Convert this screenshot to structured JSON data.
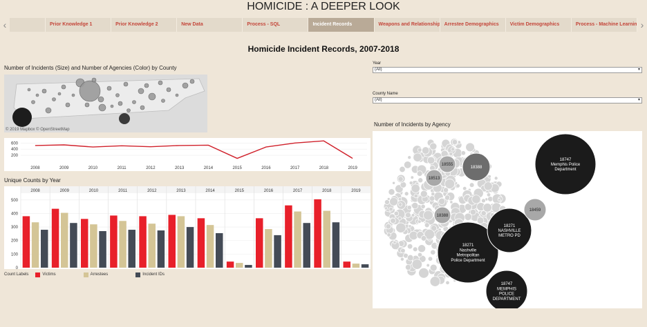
{
  "story": {
    "title": "HOMICIDE : A DEEPER LOOK"
  },
  "tabs": [
    {
      "label": ""
    },
    {
      "label": "Prior Knowledge 1"
    },
    {
      "label": "Prior Knowledge 2"
    },
    {
      "label": "New Data"
    },
    {
      "label": "Process - SQL"
    },
    {
      "label": "Incident Records"
    },
    {
      "label": "Weapons and Relationships"
    },
    {
      "label": "Arrestee Demographics"
    },
    {
      "label": "Victim Demographics"
    },
    {
      "label": "Process - Machine Learning"
    }
  ],
  "active_tab": 5,
  "dashboard": {
    "title": "Homicide Incident Records, 2007-2018"
  },
  "map": {
    "title": "Number of Incidents (Size) and Number of Agencies (Color) by County",
    "attribution": "© 2019 Mapbox © OpenStreetMap"
  },
  "filters": {
    "year_label": "Year",
    "year_value": "(All)",
    "county_label": "County Name",
    "county_value": "(All)"
  },
  "bar_section_title": "Unique Counts by Year",
  "agency_section_title": "Number of Incidents by Agency",
  "legend": {
    "title": "Count Labels",
    "items": [
      {
        "label": "Victims",
        "color": "#e8202a"
      },
      {
        "label": "Arrestees",
        "color": "#d4c596"
      },
      {
        "label": "Incident IDs",
        "color": "#444b56"
      }
    ]
  },
  "chart_data": [
    {
      "type": "line",
      "x": [
        "2008",
        "2009",
        "2010",
        "2011",
        "2012",
        "2013",
        "2014",
        "2015",
        "2016",
        "2017",
        "2018",
        "2019"
      ],
      "series": [
        {
          "values": [
            520,
            540,
            470,
            510,
            480,
            520,
            530,
            100,
            470,
            600,
            670,
            100
          ]
        }
      ],
      "yticks": [
        200,
        400,
        600
      ],
      "ylim": [
        0,
        720
      ],
      "color": "#d0202a"
    },
    {
      "type": "bar",
      "title": "Unique Counts by Year",
      "categories": [
        "2008",
        "2009",
        "2010",
        "2011",
        "2012",
        "2013",
        "2014",
        "2015",
        "2016",
        "2017",
        "2018",
        "2019"
      ],
      "series": [
        {
          "name": "Victims",
          "values": [
            380,
            435,
            360,
            385,
            380,
            390,
            365,
            45,
            365,
            460,
            505,
            45
          ]
        },
        {
          "name": "Arrestees",
          "values": [
            335,
            405,
            320,
            345,
            325,
            380,
            315,
            35,
            285,
            415,
            420,
            30
          ]
        },
        {
          "name": "Incident IDs",
          "values": [
            280,
            330,
            270,
            280,
            275,
            300,
            255,
            20,
            240,
            330,
            335,
            25
          ]
        }
      ],
      "yticks": [
        0,
        100,
        200,
        300,
        400,
        500
      ],
      "ylim": [
        0,
        540
      ]
    },
    {
      "type": "bubble",
      "title": "Number of Incidents by Agency",
      "bubbles": [
        {
          "id": "18747",
          "name": "Memphis Police Department",
          "size": 10,
          "shade": "dark"
        },
        {
          "id": "18271",
          "name": "Nashville Metropolitan Police Department",
          "size": 10,
          "shade": "dark"
        },
        {
          "id": "18271",
          "name": "NASHVILLE METRO PD",
          "size": 8,
          "shade": "dark"
        },
        {
          "id": "18747",
          "name": "MEMPHIS POLICE DEPARTMENT",
          "size": 7,
          "shade": "dark"
        },
        {
          "id": "18388",
          "name": "",
          "size": 4,
          "shade": "mid"
        },
        {
          "id": "18459",
          "name": "",
          "size": 3,
          "shade": "light"
        },
        {
          "id": "18388",
          "name": "",
          "size": 2,
          "shade": "light"
        },
        {
          "id": "18555",
          "name": "",
          "size": 2,
          "shade": "light"
        },
        {
          "id": "18513",
          "name": "",
          "size": 2,
          "shade": "light"
        }
      ]
    }
  ]
}
